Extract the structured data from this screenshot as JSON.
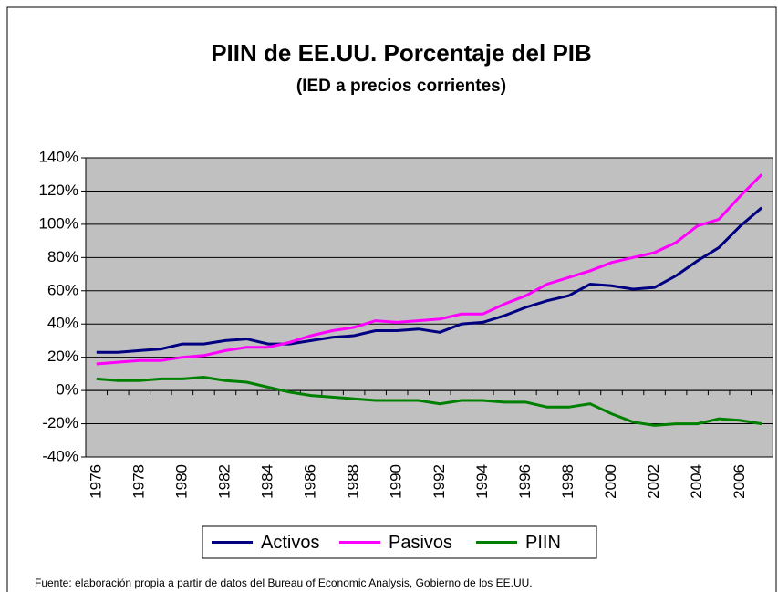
{
  "chart_data": {
    "type": "line",
    "title": "PIIN de EE.UU. Porcentaje del PIB",
    "subtitle": "(IED a precios corrientes)",
    "note": "Fuente: elaboración propia a partir de datos del Bureau of Economic Analysis, Gobierno de los EE.UU.",
    "categories": [
      "1976",
      null,
      "1978",
      null,
      "1980",
      null,
      "1982",
      null,
      "1984",
      null,
      "1986",
      null,
      "1988",
      null,
      "1990",
      null,
      "1992",
      null,
      "1994",
      null,
      "1996",
      null,
      "1998",
      null,
      "2000",
      null,
      "2002",
      null,
      "2004",
      null,
      "2006",
      null
    ],
    "series": [
      {
        "name": "Activos",
        "color": "#000080",
        "values": [
          23,
          23,
          24,
          25,
          28,
          28,
          30,
          31,
          28,
          28,
          30,
          32,
          33,
          36,
          36,
          37,
          35,
          40,
          41,
          45,
          50,
          54,
          57,
          64,
          63,
          61,
          62,
          69,
          78,
          86,
          99,
          110
        ]
      },
      {
        "name": "Pasivos",
        "color": "#ff00ff",
        "values": [
          16,
          17,
          18,
          18,
          20,
          21,
          24,
          26,
          26,
          29,
          33,
          36,
          38,
          42,
          41,
          42,
          43,
          46,
          46,
          52,
          57,
          64,
          68,
          72,
          77,
          80,
          83,
          89,
          99,
          103,
          117,
          130
        ]
      },
      {
        "name": "PIIN",
        "color": "#008000",
        "values": [
          7,
          6,
          6,
          7,
          7,
          8,
          6,
          5,
          2,
          -1,
          -3,
          -4,
          -5,
          -6,
          -6,
          -6,
          -8,
          -6,
          -6,
          -7,
          -7,
          -10,
          -10,
          -8,
          -14,
          -19,
          -21,
          -20,
          -20,
          -17,
          -18,
          -20
        ]
      }
    ],
    "ylim": [
      -40,
      140
    ],
    "yticks": [
      {
        "value": -40,
        "label": "-40%"
      },
      {
        "value": -20,
        "label": "-20%"
      },
      {
        "value": 0,
        "label": "0%"
      },
      {
        "value": 20,
        "label": "20%"
      },
      {
        "value": 40,
        "label": "40%"
      },
      {
        "value": 60,
        "label": "60%"
      },
      {
        "value": 80,
        "label": "80%"
      },
      {
        "value": 100,
        "label": "100%"
      },
      {
        "value": 120,
        "label": "120%"
      },
      {
        "value": 140,
        "label": "140%"
      }
    ],
    "grid": true,
    "legend": "bottom"
  }
}
